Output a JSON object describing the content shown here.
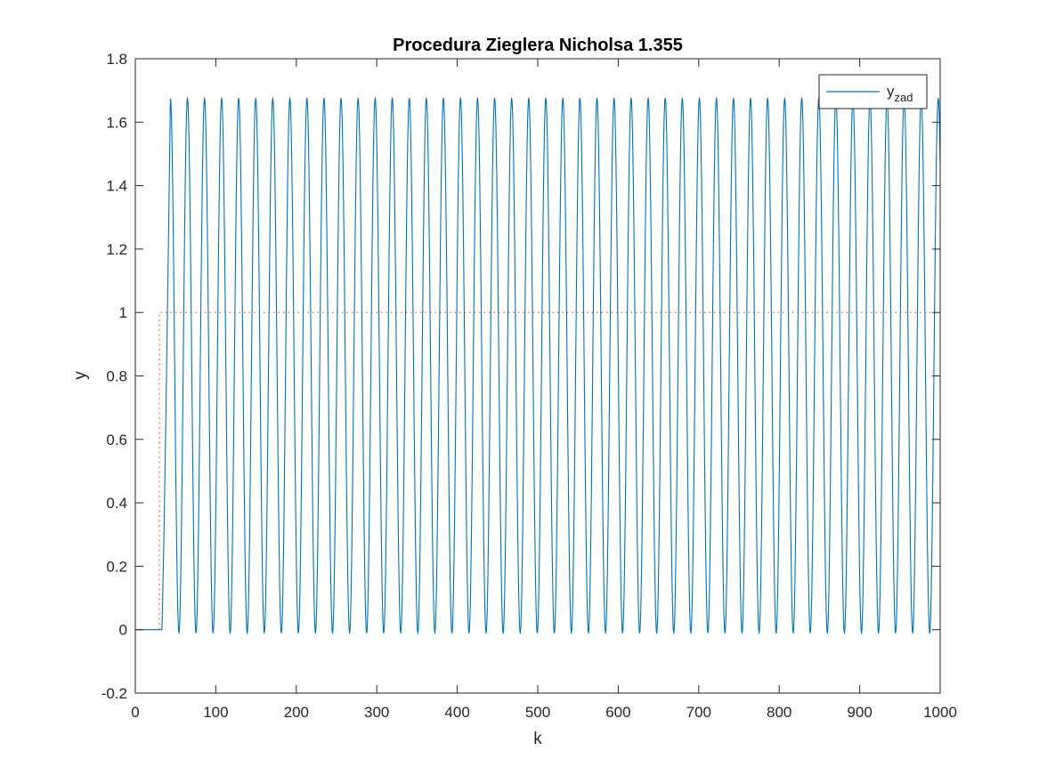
{
  "chart_data": {
    "type": "line",
    "title": "Procedura Zieglera Nicholsa 1.355",
    "xlabel": "k",
    "ylabel": "y",
    "xlim": [
      0,
      1000
    ],
    "ylim": [
      -0.2,
      1.8
    ],
    "x_ticks": [
      "0",
      "100",
      "200",
      "300",
      "400",
      "500",
      "600",
      "700",
      "800",
      "900",
      "1000"
    ],
    "y_ticks": [
      "-0.2",
      "0",
      "0.2",
      "0.4",
      "0.6",
      "0.8",
      "1",
      "1.2",
      "1.4",
      "1.6",
      "1.8"
    ],
    "grid": false,
    "legend_position": "top-right",
    "series": [
      {
        "label": "y",
        "label_subscript": "zad",
        "color": "#0072BD",
        "style": "solid",
        "step_start": 33,
        "period": 21.2,
        "peak": 1.675,
        "trough": -0.01,
        "x_end": 1000
      },
      {
        "color": "#D95319",
        "style": "dotted",
        "x": [
          0,
          30,
          30,
          1000
        ],
        "y": [
          0,
          0,
          1,
          1
        ]
      }
    ]
  }
}
